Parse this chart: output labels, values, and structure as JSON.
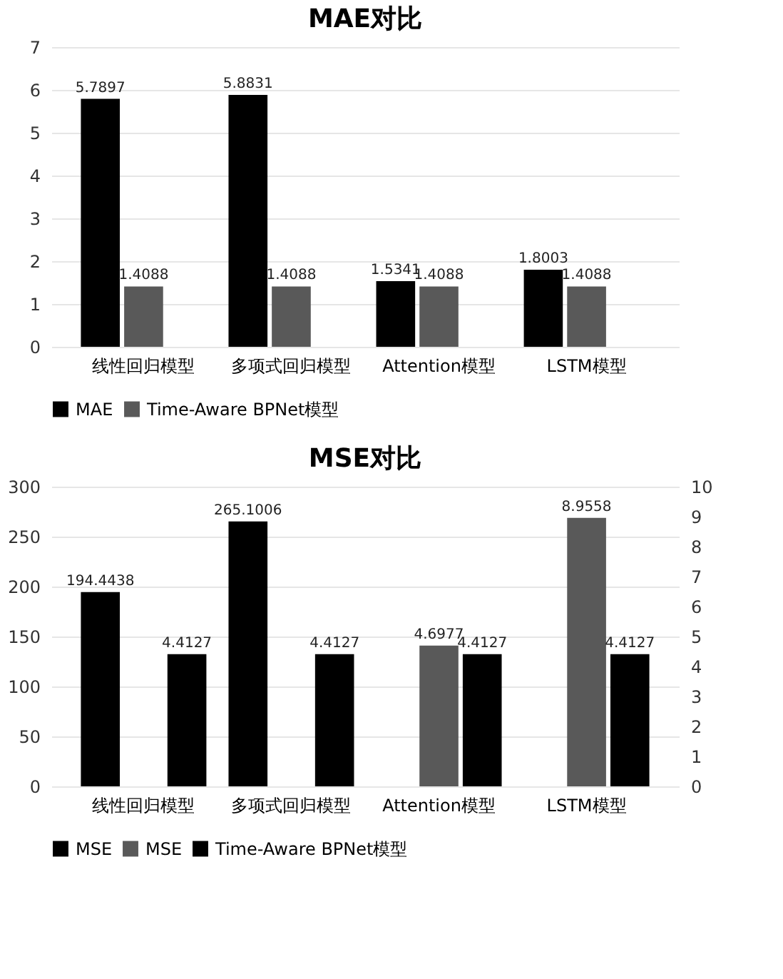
{
  "chart_data": [
    {
      "type": "bar",
      "title": "MAE对比",
      "categories": [
        "线性回归模型",
        "多项式回归模型",
        "Attention模型",
        "LSTM模型"
      ],
      "series": [
        {
          "name": "MAE",
          "color": "#000000",
          "values": [
            5.7897,
            5.8831,
            1.5341,
            1.8003
          ]
        },
        {
          "name": "Time-Aware BPNet模型",
          "color": "#595959",
          "values": [
            1.4088,
            1.4088,
            1.4088,
            1.4088
          ]
        }
      ],
      "ylim": [
        0,
        7
      ],
      "yticks": [
        0,
        1,
        2,
        3,
        4,
        5,
        6,
        7
      ],
      "grid": "y",
      "legend": "bottom",
      "data_labels": true
    },
    {
      "type": "bar",
      "title": "MSE对比",
      "categories": [
        "线性回归模型",
        "多项式回归模型",
        "Attention模型",
        "LSTM模型"
      ],
      "series": [
        {
          "name": "MSE",
          "color": "#000000",
          "values": [
            194.4438,
            265.1006,
            null,
            null
          ]
        },
        {
          "name": "MSE",
          "color": "#595959",
          "axis": "y2",
          "values": [
            null,
            null,
            4.6977,
            8.9558
          ]
        },
        {
          "name": "Time-Aware BPNet模型",
          "color": "#000000",
          "axis": "y2",
          "values": [
            4.4127,
            4.4127,
            4.4127,
            4.4127
          ]
        }
      ],
      "ylim": [
        0,
        300
      ],
      "yticks": [
        0,
        50,
        100,
        150,
        200,
        250,
        300
      ],
      "y2lim": [
        0,
        10
      ],
      "y2ticks": [
        0,
        1,
        2,
        3,
        4,
        5,
        6,
        7,
        8,
        9,
        10
      ],
      "grid": "y",
      "legend": "bottom",
      "data_labels": true
    }
  ]
}
